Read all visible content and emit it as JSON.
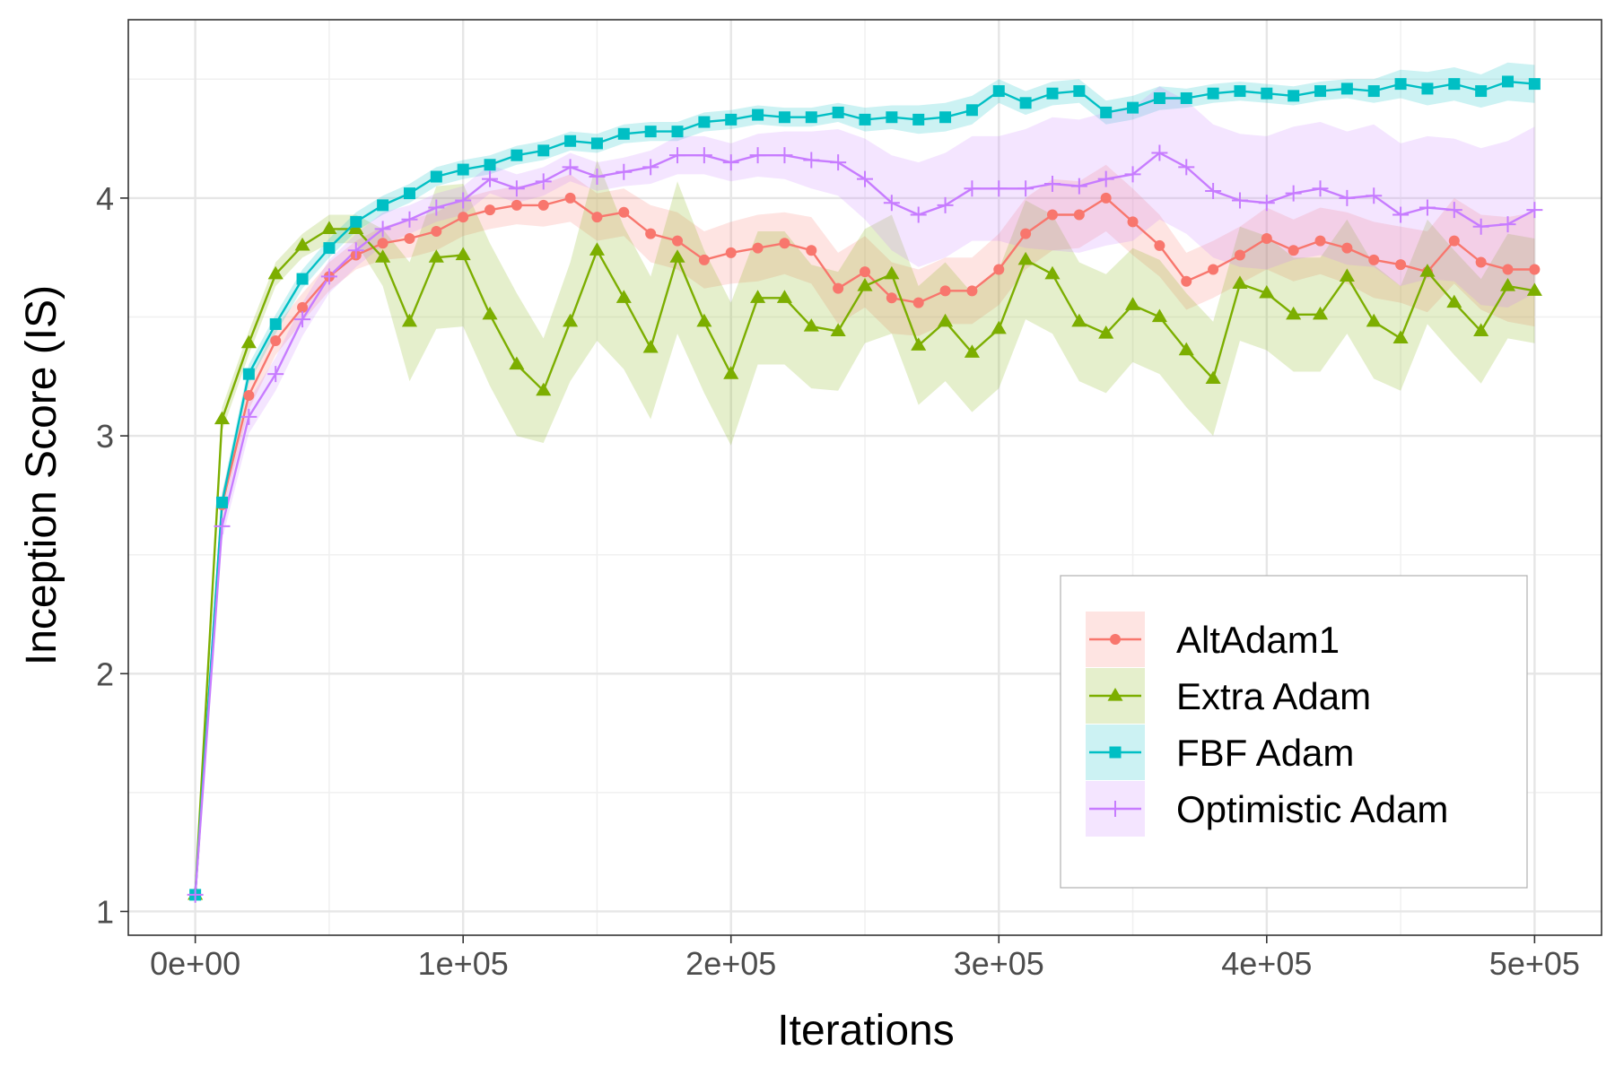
{
  "chart_data": {
    "type": "line",
    "title": "",
    "xlabel": "Iterations",
    "ylabel": "Inception Score (IS)",
    "xlim": [
      -25000,
      525000
    ],
    "ylim": [
      0.9,
      4.75
    ],
    "x_ticks": [
      0,
      100000,
      200000,
      300000,
      400000,
      500000
    ],
    "x_tick_labels": [
      "0e+00",
      "1e+05",
      "2e+05",
      "3e+05",
      "4e+05",
      "5e+05"
    ],
    "y_ticks": [
      1,
      2,
      3,
      4
    ],
    "y_tick_labels": [
      "1",
      "2",
      "3",
      "4"
    ],
    "y_minor_ticks": [
      1.5,
      2.5,
      3.5,
      4.5
    ],
    "x_minor_ticks": [
      50000,
      150000,
      250000,
      350000,
      450000
    ],
    "grid": true,
    "legend_position": "bottom-right",
    "x": [
      0,
      10000,
      20000,
      30000,
      40000,
      50000,
      60000,
      70000,
      80000,
      90000,
      100000,
      110000,
      120000,
      130000,
      140000,
      150000,
      160000,
      170000,
      180000,
      190000,
      200000,
      210000,
      220000,
      230000,
      240000,
      250000,
      260000,
      270000,
      280000,
      290000,
      300000,
      310000,
      320000,
      330000,
      340000,
      350000,
      360000,
      370000,
      380000,
      390000,
      400000,
      410000,
      420000,
      430000,
      440000,
      450000,
      460000,
      470000,
      480000,
      490000,
      500000
    ],
    "series": [
      {
        "name": "AltAdam1",
        "color": "#F8766D",
        "marker": "circle",
        "values": [
          1.07,
          2.71,
          3.17,
          3.4,
          3.54,
          3.67,
          3.76,
          3.81,
          3.83,
          3.86,
          3.92,
          3.95,
          3.97,
          3.97,
          4.0,
          3.92,
          3.94,
          3.85,
          3.82,
          3.74,
          3.77,
          3.79,
          3.81,
          3.78,
          3.62,
          3.69,
          3.58,
          3.56,
          3.61,
          3.61,
          3.7,
          3.85,
          3.93,
          3.93,
          4.0,
          3.9,
          3.8,
          3.65,
          3.7,
          3.76,
          3.83,
          3.78,
          3.82,
          3.79,
          3.74,
          3.72,
          3.69,
          3.82,
          3.73,
          3.7,
          3.7
        ],
        "band": [
          0.03,
          0.05,
          0.06,
          0.06,
          0.06,
          0.06,
          0.06,
          0.07,
          0.08,
          0.08,
          0.08,
          0.08,
          0.08,
          0.09,
          0.1,
          0.1,
          0.1,
          0.12,
          0.12,
          0.12,
          0.13,
          0.14,
          0.13,
          0.14,
          0.15,
          0.15,
          0.15,
          0.14,
          0.14,
          0.14,
          0.15,
          0.15,
          0.15,
          0.14,
          0.14,
          0.14,
          0.13,
          0.12,
          0.12,
          0.12,
          0.13,
          0.13,
          0.14,
          0.15,
          0.16,
          0.16,
          0.17,
          0.18,
          0.2,
          0.22,
          0.24
        ]
      },
      {
        "name": "Extra Adam",
        "color": "#7CAE00",
        "marker": "triangle",
        "values": [
          1.07,
          3.07,
          3.39,
          3.68,
          3.8,
          3.87,
          3.87,
          3.75,
          3.48,
          3.75,
          3.76,
          3.51,
          3.3,
          3.19,
          3.48,
          3.78,
          3.58,
          3.37,
          3.75,
          3.48,
          3.26,
          3.58,
          3.58,
          3.46,
          3.44,
          3.63,
          3.68,
          3.38,
          3.48,
          3.35,
          3.45,
          3.74,
          3.68,
          3.48,
          3.43,
          3.55,
          3.5,
          3.36,
          3.24,
          3.64,
          3.6,
          3.51,
          3.51,
          3.67,
          3.48,
          3.41,
          3.69,
          3.56,
          3.44,
          3.63,
          3.61
        ],
        "band": [
          0.03,
          0.05,
          0.05,
          0.05,
          0.05,
          0.06,
          0.06,
          0.12,
          0.25,
          0.3,
          0.3,
          0.3,
          0.3,
          0.22,
          0.25,
          0.38,
          0.3,
          0.3,
          0.32,
          0.3,
          0.3,
          0.28,
          0.28,
          0.26,
          0.25,
          0.24,
          0.25,
          0.25,
          0.25,
          0.25,
          0.25,
          0.25,
          0.25,
          0.25,
          0.25,
          0.24,
          0.24,
          0.24,
          0.24,
          0.24,
          0.24,
          0.24,
          0.24,
          0.24,
          0.24,
          0.22,
          0.22,
          0.22,
          0.22,
          0.22,
          0.22
        ]
      },
      {
        "name": "FBF Adam",
        "color": "#00BFC4",
        "marker": "square",
        "values": [
          1.07,
          2.72,
          3.26,
          3.47,
          3.66,
          3.79,
          3.9,
          3.97,
          4.02,
          4.09,
          4.12,
          4.14,
          4.18,
          4.2,
          4.24,
          4.23,
          4.27,
          4.28,
          4.28,
          4.32,
          4.33,
          4.35,
          4.34,
          4.34,
          4.36,
          4.33,
          4.34,
          4.33,
          4.34,
          4.37,
          4.45,
          4.4,
          4.44,
          4.45,
          4.36,
          4.38,
          4.42,
          4.42,
          4.44,
          4.45,
          4.44,
          4.43,
          4.45,
          4.46,
          4.45,
          4.48,
          4.46,
          4.48,
          4.45,
          4.49,
          4.48
        ],
        "band": [
          0.03,
          0.04,
          0.04,
          0.04,
          0.04,
          0.04,
          0.04,
          0.04,
          0.04,
          0.04,
          0.04,
          0.04,
          0.04,
          0.04,
          0.04,
          0.04,
          0.04,
          0.04,
          0.04,
          0.04,
          0.04,
          0.04,
          0.04,
          0.04,
          0.04,
          0.05,
          0.05,
          0.06,
          0.06,
          0.06,
          0.05,
          0.05,
          0.05,
          0.05,
          0.05,
          0.05,
          0.05,
          0.04,
          0.04,
          0.04,
          0.04,
          0.04,
          0.04,
          0.04,
          0.05,
          0.06,
          0.07,
          0.07,
          0.07,
          0.08,
          0.08
        ]
      },
      {
        "name": "Optimistic Adam",
        "color": "#C77CFF",
        "marker": "plus",
        "values": [
          1.07,
          2.62,
          3.08,
          3.26,
          3.49,
          3.67,
          3.78,
          3.87,
          3.91,
          3.96,
          3.99,
          4.08,
          4.04,
          4.07,
          4.13,
          4.09,
          4.11,
          4.13,
          4.18,
          4.18,
          4.15,
          4.18,
          4.18,
          4.16,
          4.15,
          4.08,
          3.98,
          3.93,
          3.97,
          4.04,
          4.04,
          4.04,
          4.06,
          4.05,
          4.08,
          4.1,
          4.19,
          4.13,
          4.03,
          3.99,
          3.98,
          4.02,
          4.04,
          4.0,
          4.01,
          3.93,
          3.96,
          3.95,
          3.88,
          3.89,
          3.95
        ],
        "band": [
          0.03,
          0.06,
          0.07,
          0.07,
          0.07,
          0.07,
          0.07,
          0.07,
          0.06,
          0.06,
          0.06,
          0.06,
          0.06,
          0.06,
          0.06,
          0.06,
          0.06,
          0.07,
          0.08,
          0.08,
          0.08,
          0.09,
          0.1,
          0.12,
          0.14,
          0.17,
          0.2,
          0.22,
          0.22,
          0.22,
          0.22,
          0.25,
          0.28,
          0.28,
          0.28,
          0.28,
          0.28,
          0.28,
          0.28,
          0.28,
          0.28,
          0.28,
          0.28,
          0.28,
          0.3,
          0.3,
          0.3,
          0.3,
          0.33,
          0.35,
          0.35
        ]
      }
    ]
  }
}
